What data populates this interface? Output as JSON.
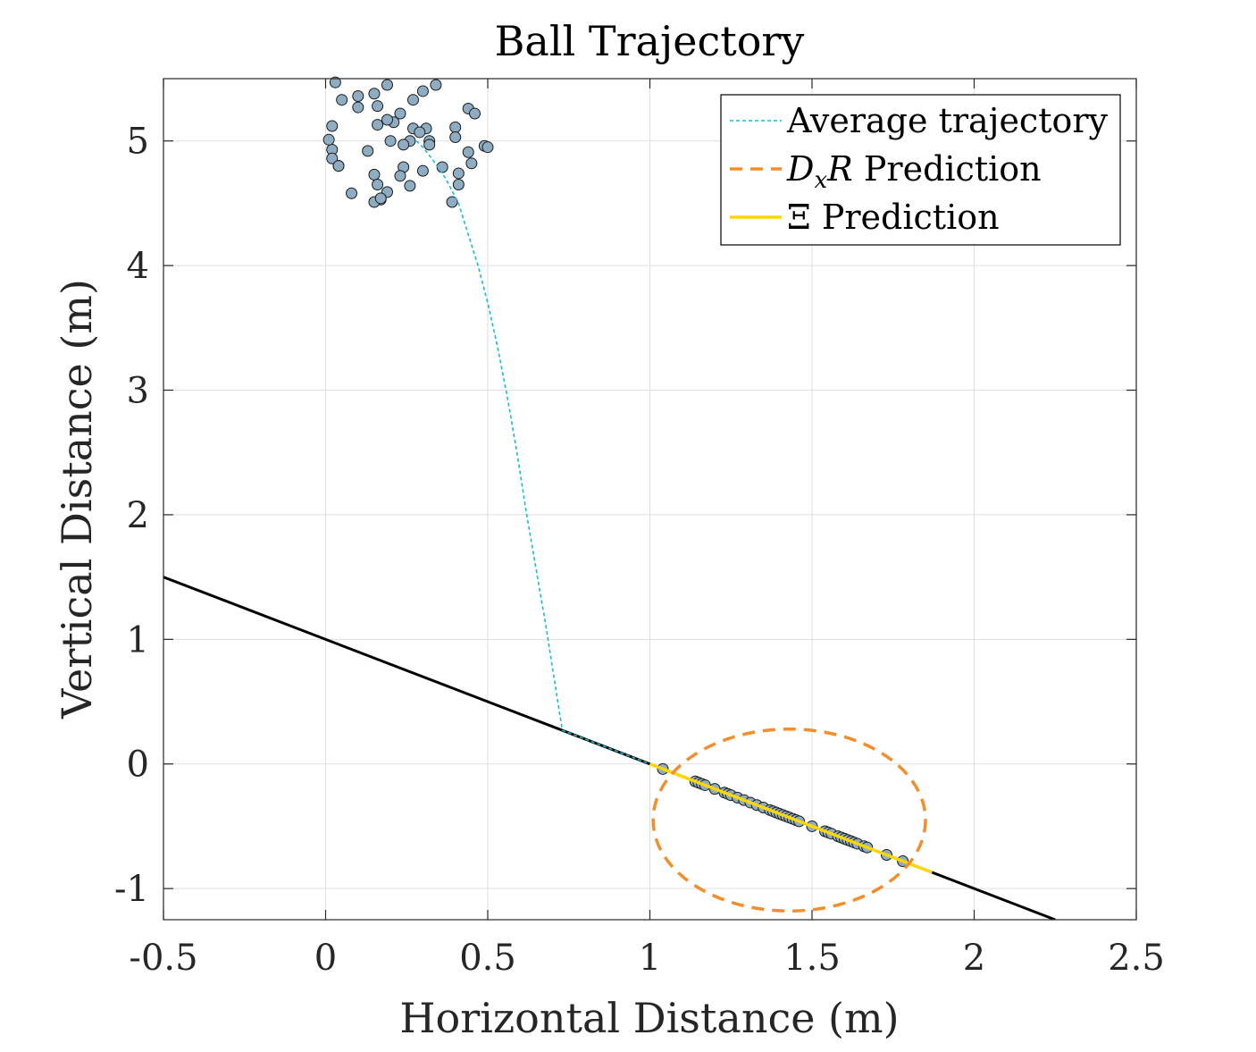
{
  "chart_data": {
    "type": "scatter",
    "title": "Ball Trajectory",
    "xlabel": "Horizontal Distance (m)",
    "ylabel": "Vertical Distance (m)",
    "xlim": [
      -0.5,
      2.5
    ],
    "ylim": [
      -1.25,
      5.5
    ],
    "x_ticks": [
      -0.5,
      0,
      0.5,
      1,
      1.5,
      2,
      2.5
    ],
    "x_tick_labels": [
      "-0.5",
      "0",
      "0.5",
      "1",
      "1.5",
      "2",
      "2.5"
    ],
    "y_ticks": [
      -1,
      0,
      1,
      2,
      3,
      4,
      5
    ],
    "y_tick_labels": [
      "-1",
      "0",
      "1",
      "2",
      "3",
      "4",
      "5"
    ],
    "grid": true,
    "legend_position": "top-right",
    "legend": [
      {
        "label": "Average trajectory",
        "style": "dotted",
        "color": "#17becf"
      },
      {
        "label_main": "D",
        "label_sub": "x",
        "label_rest": "R",
        "label_tail": " Prediction",
        "style": "dashed",
        "color": "#f28e2b"
      },
      {
        "label": "Ξ Prediction",
        "style": "solid",
        "color": "#ffd700"
      }
    ],
    "colors": {
      "average": "#17becf",
      "dxr": "#f28e2b",
      "xi": "#ffd700",
      "surface": "#000000",
      "points_fill": "#8fadc2",
      "points_edge": "#1a1a1a"
    },
    "surface_line": {
      "x": [
        -0.5,
        2.25
      ],
      "y": [
        1.5,
        -1.25
      ]
    },
    "average_trajectory": {
      "x": [
        0.28,
        0.3,
        0.33,
        0.37,
        0.41,
        0.44,
        0.47,
        0.5,
        0.53,
        0.56,
        0.59,
        0.62,
        0.65,
        0.68,
        0.71,
        0.73,
        0.74,
        0.8,
        0.9,
        1.0
      ],
      "y": [
        5.0,
        4.95,
        4.85,
        4.7,
        4.5,
        4.25,
        4.0,
        3.7,
        3.35,
        2.95,
        2.5,
        2.0,
        1.55,
        1.1,
        0.6,
        0.27,
        0.26,
        0.2,
        0.1,
        0.0
      ]
    },
    "dxr_ellipse": {
      "cx": 1.43,
      "cy": -0.45,
      "rx": 0.42,
      "ry": 0.73
    },
    "xi_prediction": {
      "x": [
        1.0,
        1.87
      ],
      "y": [
        0.0,
        -0.87
      ]
    },
    "initial_points": {
      "x": [
        0.03,
        0.05,
        0.1,
        0.15,
        0.19,
        0.23,
        0.27,
        0.3,
        0.34,
        0.02,
        0.1,
        0.16,
        0.21,
        0.27,
        0.31,
        0.44,
        0.46,
        0.02,
        0.16,
        0.19,
        0.26,
        0.29,
        0.32,
        0.4,
        0.49,
        0.01,
        0.04,
        0.13,
        0.2,
        0.24,
        0.3,
        0.4,
        0.44,
        0.5,
        0.02,
        0.04,
        0.15,
        0.23,
        0.32,
        0.36,
        0.41,
        0.45,
        0.16,
        0.08,
        0.17,
        0.19,
        0.26,
        0.39,
        0.15,
        0.17,
        0.41,
        0.24
      ],
      "y": [
        5.47,
        5.33,
        5.36,
        5.38,
        5.45,
        5.22,
        5.33,
        5.4,
        5.45,
        5.12,
        5.27,
        5.28,
        5.15,
        5.1,
        5.1,
        5.26,
        5.22,
        4.93,
        5.13,
        5.17,
        5.0,
        5.07,
        5.0,
        5.11,
        4.96,
        5.01,
        4.8,
        4.92,
        5.0,
        4.79,
        4.76,
        5.03,
        4.91,
        4.95,
        4.86,
        4.8,
        4.73,
        4.72,
        4.97,
        4.79,
        4.74,
        4.82,
        4.65,
        4.58,
        4.53,
        4.59,
        4.64,
        4.51,
        4.51,
        4.54,
        4.65,
        4.97
      ]
    },
    "landing_points": {
      "x": [
        1.04,
        1.14,
        1.15,
        1.16,
        1.17,
        1.2,
        1.23,
        1.24,
        1.25,
        1.27,
        1.29,
        1.31,
        1.33,
        1.35,
        1.37,
        1.38,
        1.39,
        1.4,
        1.41,
        1.42,
        1.43,
        1.44,
        1.45,
        1.46,
        1.5,
        1.54,
        1.55,
        1.56,
        1.58,
        1.59,
        1.6,
        1.61,
        1.62,
        1.63,
        1.64,
        1.66,
        1.67,
        1.73,
        1.78
      ],
      "y": [
        -0.04,
        -0.14,
        -0.15,
        -0.16,
        -0.17,
        -0.2,
        -0.23,
        -0.24,
        -0.25,
        -0.27,
        -0.29,
        -0.31,
        -0.33,
        -0.35,
        -0.37,
        -0.38,
        -0.39,
        -0.4,
        -0.41,
        -0.42,
        -0.43,
        -0.44,
        -0.45,
        -0.46,
        -0.5,
        -0.54,
        -0.55,
        -0.56,
        -0.58,
        -0.59,
        -0.6,
        -0.61,
        -0.62,
        -0.63,
        -0.64,
        -0.66,
        -0.67,
        -0.73,
        -0.78
      ]
    }
  }
}
